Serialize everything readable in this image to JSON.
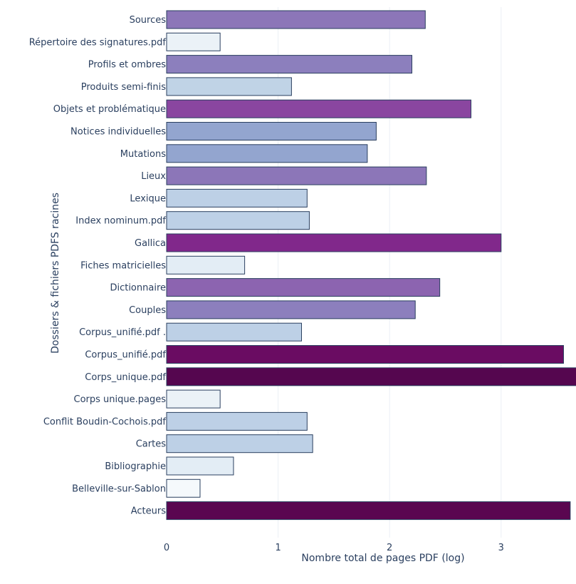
{
  "chart_data": {
    "type": "bar",
    "orientation": "horizontal",
    "categories": [
      "Sources",
      "Répertoire des signatures.pdf",
      "Profils et ombres",
      "Produits semi-finis",
      "Objets et problématique",
      "Notices individuelles",
      "Mutations",
      "Lieux",
      "Lexique",
      "Index nominum.pdf",
      "Gallica",
      "Fiches matricielles",
      "Dictionnaire",
      "Couples",
      "Corpus_unifié.pdf .",
      "Corpus_unifié.pdf",
      "Corps_unique.pdf",
      "Corps unique.pages",
      "Conflit Boudin-Cochois.pdf",
      "Cartes",
      "Bibliographie",
      "Belleville-sur-Sablon",
      "Acteurs"
    ],
    "values": [
      2.32,
      0.48,
      2.2,
      1.12,
      2.73,
      1.88,
      1.8,
      2.33,
      1.26,
      1.28,
      3.0,
      0.7,
      2.45,
      2.23,
      1.21,
      3.56,
      3.7,
      0.48,
      1.26,
      1.31,
      0.6,
      0.3,
      3.62
    ],
    "colors": [
      "#8c76b8",
      "#ebf2f7",
      "#8c7fbd",
      "#c0d3e6",
      "#8a46a0",
      "#93a5cf",
      "#93a5cf",
      "#8c76b8",
      "#bdd0e6",
      "#bdd0e6",
      "#81288b",
      "#e3edf5",
      "#8c64b0",
      "#8c7fbd",
      "#bdd0e6",
      "#6a0c62",
      "#55064f",
      "#ebf2f7",
      "#bdd0e6",
      "#bdd0e6",
      "#e3edf5",
      "#f5f9fc",
      "#5a0650"
    ],
    "xlabel": "Nombre total de pages PDF (log)",
    "ylabel": "Dossiers & fichiers PDFS racines",
    "xticks": [
      0,
      1,
      2,
      3
    ],
    "xlim": [
      0,
      3.67
    ],
    "grid": true,
    "legend": false
  }
}
